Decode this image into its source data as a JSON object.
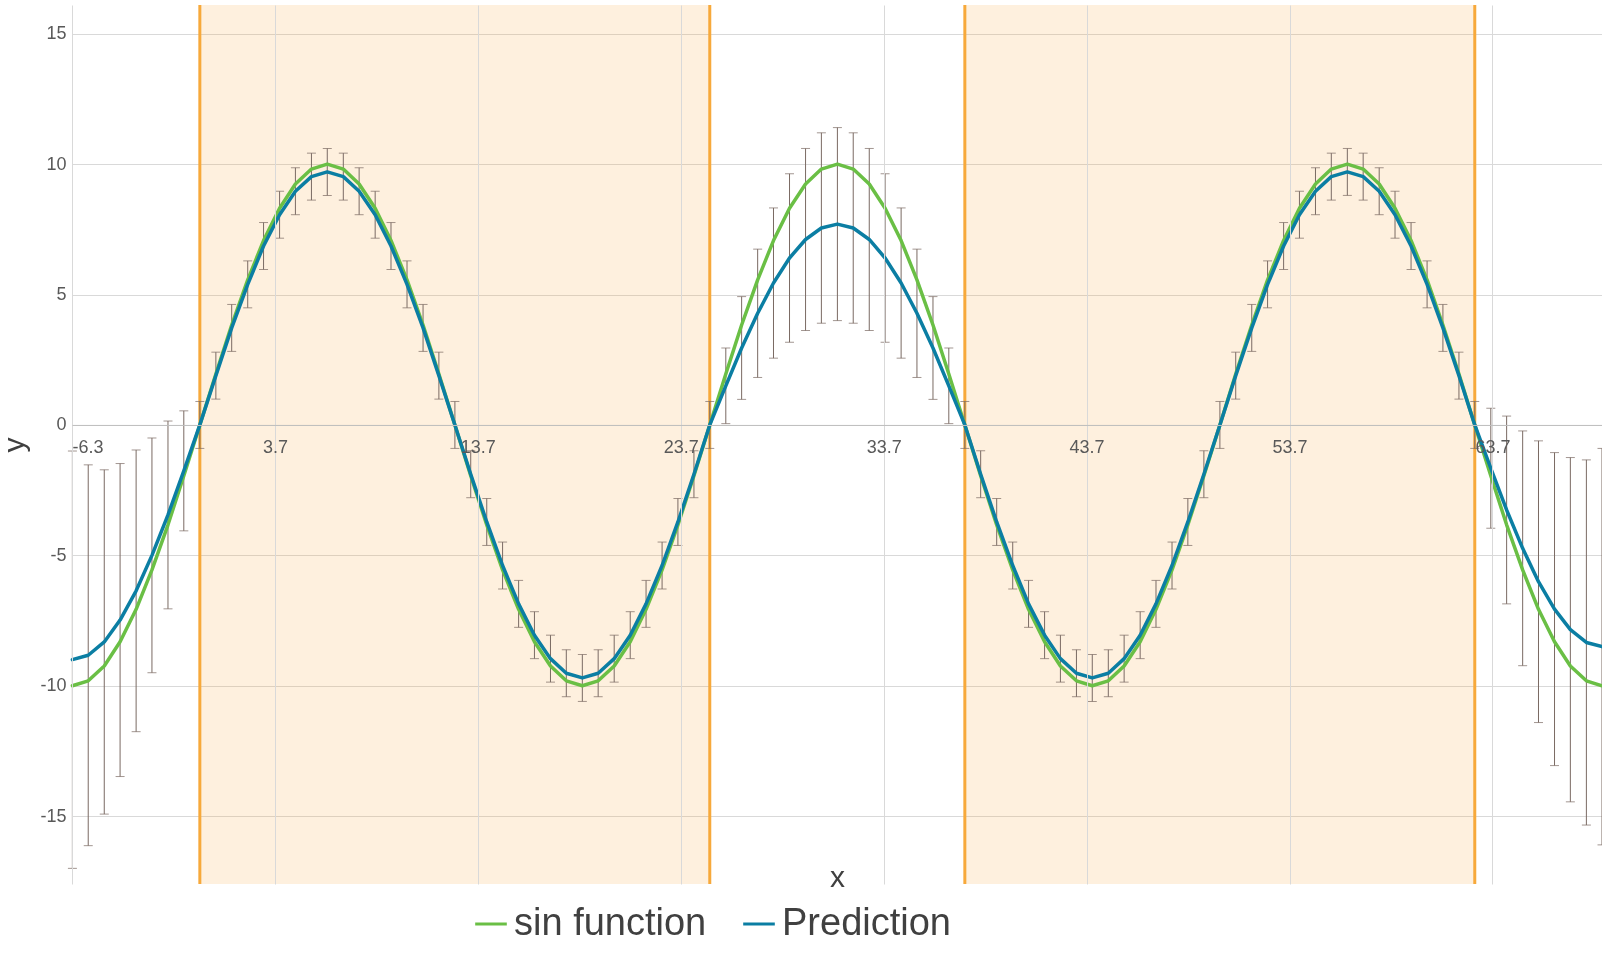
{
  "chart_data": {
    "type": "line",
    "xlabel": "x",
    "ylabel": "y",
    "x": [
      -6.28,
      -5.5,
      -4.71,
      -3.93,
      -3.14,
      -2.36,
      -1.57,
      -0.79,
      0,
      0.79,
      1.57,
      2.36,
      3.14,
      3.93,
      4.71,
      5.5,
      6.28,
      7.07,
      7.85,
      8.64,
      9.42,
      10.21,
      11,
      11.78,
      12.57,
      13.35,
      14.14,
      14.92,
      15.71,
      16.49,
      17.28,
      18.06,
      18.85,
      19.63,
      20.42,
      21.21,
      21.99,
      22.78,
      23.56,
      24.35,
      25.13,
      25.92,
      26.7,
      27.49,
      28.27,
      29.06,
      29.85,
      30.63,
      31.42,
      32.2,
      32.99,
      33.77,
      34.56,
      35.34,
      36.13,
      36.91,
      37.7,
      38.48,
      39.27,
      40.06,
      40.84,
      41.63,
      42.41,
      43.2,
      43.98,
      44.77,
      45.55,
      46.34,
      47.12,
      47.91,
      48.69,
      49.48,
      50.27,
      51.05,
      51.84,
      52.62,
      53.41,
      54.19,
      54.98,
      55.76,
      56.55,
      57.33,
      58.12,
      58.9,
      59.69,
      60.48,
      61.26,
      62.05,
      62.83,
      63.62,
      64.4,
      65.19,
      65.97,
      66.76,
      67.54,
      68.33,
      69.1
    ],
    "series": [
      {
        "name": "sin function",
        "color": "#6abf45",
        "values": [
          -10,
          -9.81,
          -9.24,
          -8.31,
          -7.07,
          -5.56,
          -3.83,
          -1.95,
          0,
          1.95,
          3.83,
          5.56,
          7.07,
          8.31,
          9.24,
          9.81,
          10,
          9.81,
          9.24,
          8.31,
          7.07,
          5.56,
          3.83,
          1.95,
          0,
          -1.95,
          -3.83,
          -5.56,
          -7.07,
          -8.31,
          -9.24,
          -9.81,
          -10,
          -9.81,
          -9.24,
          -8.31,
          -7.07,
          -5.56,
          -3.83,
          -1.95,
          0,
          1.95,
          3.83,
          5.56,
          7.07,
          8.31,
          9.24,
          9.81,
          10,
          9.81,
          9.24,
          8.31,
          7.07,
          5.56,
          3.83,
          1.95,
          0,
          -1.95,
          -3.83,
          -5.56,
          -7.07,
          -8.31,
          -9.24,
          -9.81,
          -10,
          -9.81,
          -9.24,
          -8.31,
          -7.07,
          -5.56,
          -3.83,
          -1.95,
          0,
          1.95,
          3.83,
          5.56,
          7.07,
          8.31,
          9.24,
          9.81,
          10,
          9.81,
          9.24,
          8.31,
          7.07,
          5.56,
          3.83,
          1.95,
          0,
          -1.95,
          -3.83,
          -5.56,
          -7.07,
          -8.31,
          -9.24,
          -9.81,
          -10
        ]
      },
      {
        "name": "Prediction",
        "color": "#0b7ea3",
        "values": [
          -9,
          -8.83,
          -8.32,
          -7.48,
          -6.36,
          -5,
          -3.45,
          -1.76,
          0,
          1.89,
          3.72,
          5.39,
          6.86,
          8.06,
          8.96,
          9.52,
          9.7,
          9.52,
          8.96,
          8.06,
          6.86,
          5.39,
          3.72,
          1.89,
          0,
          -1.89,
          -3.72,
          -5.39,
          -6.86,
          -8.06,
          -8.96,
          -9.52,
          -9.7,
          -9.52,
          -8.96,
          -8.06,
          -6.86,
          -5.39,
          -3.72,
          -1.89,
          0,
          1.5,
          2.95,
          4.28,
          5.44,
          6.4,
          7.11,
          7.55,
          7.7,
          7.55,
          7.11,
          6.4,
          5.44,
          4.28,
          2.95,
          1.5,
          0,
          -1.89,
          -3.72,
          -5.39,
          -6.86,
          -8.06,
          -8.96,
          -9.52,
          -9.7,
          -9.52,
          -8.96,
          -8.06,
          -6.86,
          -5.39,
          -3.72,
          -1.89,
          0,
          1.89,
          3.72,
          5.39,
          6.86,
          8.06,
          8.96,
          9.52,
          9.7,
          9.52,
          8.96,
          8.06,
          6.86,
          5.39,
          3.72,
          1.89,
          0,
          -1.66,
          -3.26,
          -4.73,
          -6.01,
          -7.06,
          -7.85,
          -8.34,
          -8.5
        ],
        "errors": [
          8,
          7.3,
          6.6,
          6,
          5.4,
          4.5,
          3.6,
          2.3,
          0.9,
          0.9,
          0.9,
          0.9,
          0.9,
          0.9,
          0.9,
          0.9,
          0.9,
          0.9,
          0.9,
          0.9,
          0.9,
          0.9,
          0.9,
          0.9,
          0.9,
          0.9,
          0.9,
          0.9,
          0.9,
          0.9,
          0.9,
          0.9,
          0.9,
          0.9,
          0.9,
          0.9,
          0.9,
          0.9,
          0.9,
          0.9,
          0.9,
          1.45,
          1.97,
          2.46,
          2.88,
          3.23,
          3.49,
          3.65,
          3.7,
          3.65,
          3.49,
          3.23,
          2.88,
          2.46,
          1.97,
          1.45,
          0.9,
          0.9,
          0.9,
          0.9,
          0.9,
          0.9,
          0.9,
          0.9,
          0.9,
          0.9,
          0.9,
          0.9,
          0.9,
          0.9,
          0.9,
          0.9,
          0.9,
          0.9,
          0.9,
          0.9,
          0.9,
          0.9,
          0.9,
          0.9,
          0.9,
          0.9,
          0.9,
          0.9,
          0.9,
          0.9,
          0.9,
          0.9,
          0.9,
          2.3,
          3.6,
          4.5,
          5.4,
          6,
          6.6,
          7,
          7.6
        ]
      }
    ],
    "xlim": [
      -6.3,
      69.1
    ],
    "xticks": [
      -6.3,
      3.7,
      13.7,
      23.7,
      33.7,
      43.7,
      53.7,
      63.7
    ],
    "ylim": [
      -17.6,
      16.1
    ],
    "yticks": [
      -15,
      -10,
      -5,
      0,
      5,
      10,
      15
    ],
    "bands": [
      {
        "axis": "x",
        "from": 0,
        "to": 25.13,
        "color": "#f7a93b"
      },
      {
        "axis": "x",
        "from": 37.7,
        "to": 62.83,
        "color": "#f7a93b"
      }
    ],
    "ref_lines": [
      {
        "axis": "x",
        "value": 0,
        "color": "#f7a93b"
      },
      {
        "axis": "x",
        "value": 25.13,
        "color": "#f7a93b"
      },
      {
        "axis": "x",
        "value": 37.7,
        "color": "#f7a93b"
      },
      {
        "axis": "x",
        "value": 62.83,
        "color": "#f7a93b"
      }
    ],
    "grid": true,
    "legend": "bottom"
  }
}
